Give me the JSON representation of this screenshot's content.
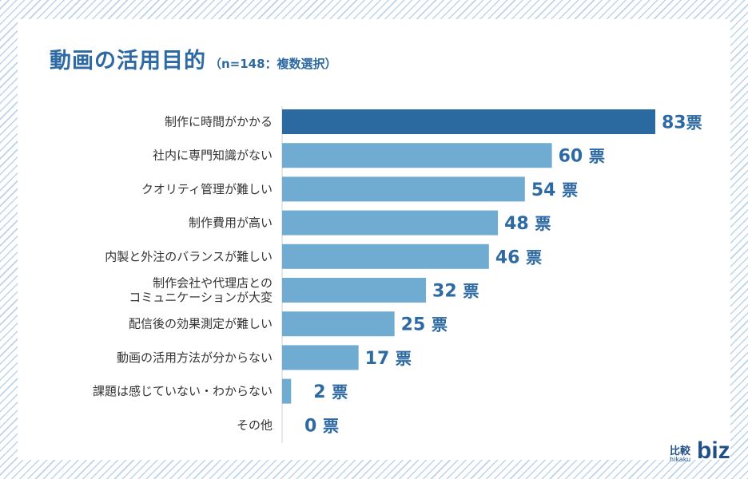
{
  "title": "動画の活用目的",
  "subtitle": "（n=148：複数選択）",
  "unit": "票",
  "logo": {
    "kanji": "比較",
    "roman": "hikaku",
    "text": "biz"
  },
  "colors": {
    "highlight": "#2b6aa1",
    "bar": "#70acd2",
    "text": "#2d69a3",
    "label": "#333333"
  },
  "chart_data": {
    "type": "bar",
    "orientation": "horizontal",
    "title": "動画の活用目的",
    "subtitle": "（n=148：複数選択）",
    "xlim": [
      0,
      83
    ],
    "categories": [
      [
        "制作に時間がかかる"
      ],
      [
        "社内に専門知識がない"
      ],
      [
        "クオリティ管理が難しい"
      ],
      [
        "制作費用が高い"
      ],
      [
        "内製と外注のバランスが難しい"
      ],
      [
        "制作会社や代理店との",
        "コミュニケーションが大変"
      ],
      [
        "配信後の効果測定が難しい"
      ],
      [
        "動画の活用方法が分からない"
      ],
      [
        "課題は感じていない・わからない"
      ],
      [
        "その他"
      ]
    ],
    "values": [
      83,
      60,
      54,
      48,
      46,
      32,
      25,
      17,
      2,
      0
    ],
    "highlight_index": 0
  }
}
